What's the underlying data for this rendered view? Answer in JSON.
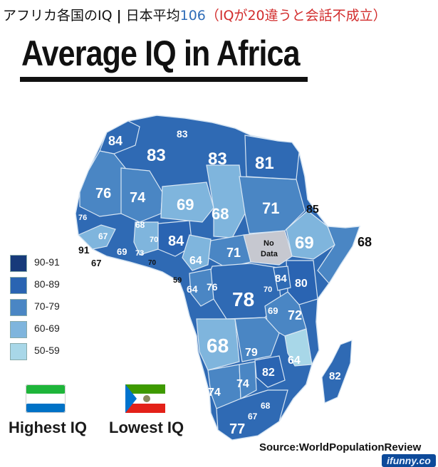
{
  "caption": {
    "prefix": "アフリカ各国のIQ",
    "separator": "|",
    "middle": "日本平均",
    "japan_value": "106",
    "note": "（IQが20違うと会話不成立）"
  },
  "title": "Average IQ in Africa",
  "legend": [
    {
      "label": "90-91",
      "color": "#173a7a"
    },
    {
      "label": "80-89",
      "color": "#2a64b2"
    },
    {
      "label": "70-79",
      "color": "#4a86c4"
    },
    {
      "label": "60-69",
      "color": "#7fb5dd"
    },
    {
      "label": "50-59",
      "color": "#a8d7e8"
    }
  ],
  "no_data_color": "#c6c8d0",
  "highest_label": "Highest IQ",
  "lowest_label": "Lowest IQ",
  "source": "Source:WorldPopulationReview",
  "watermark": "ifunny.co",
  "labels": {
    "morocco": "84",
    "algeria_n": "83",
    "algeria": "83",
    "libya": "83",
    "egypt": "81",
    "w_sahara": "76",
    "mali": "74",
    "niger": "69",
    "chad": "68",
    "sudan": "71",
    "eritrea": "85",
    "ethiopia": "69",
    "somalia": "68",
    "senegal": "76",
    "guinea": "67",
    "burkina": "68",
    "ghana": "70",
    "nigeria": "84",
    "sierra_leone": "91",
    "liberia": "67",
    "ivory": "69",
    "togo": "73",
    "benin": "70",
    "car": "71",
    "south_sudan_a": "No",
    "south_sudan_b": "Data",
    "cameroon": "64",
    "eq_guinea": "59",
    "gabon": "64",
    "congo": "76",
    "drc": "78",
    "uganda": "84",
    "kenya": "80",
    "rwanda": "70",
    "burundi": "69",
    "tanzania": "72",
    "angola": "68",
    "zambia": "79",
    "malawi": "64",
    "zimbabwe": "82",
    "madagascar": "82",
    "namibia": "74",
    "botswana": "74",
    "lesotho": "68",
    "eswatini": "67",
    "south_africa": "77"
  }
}
